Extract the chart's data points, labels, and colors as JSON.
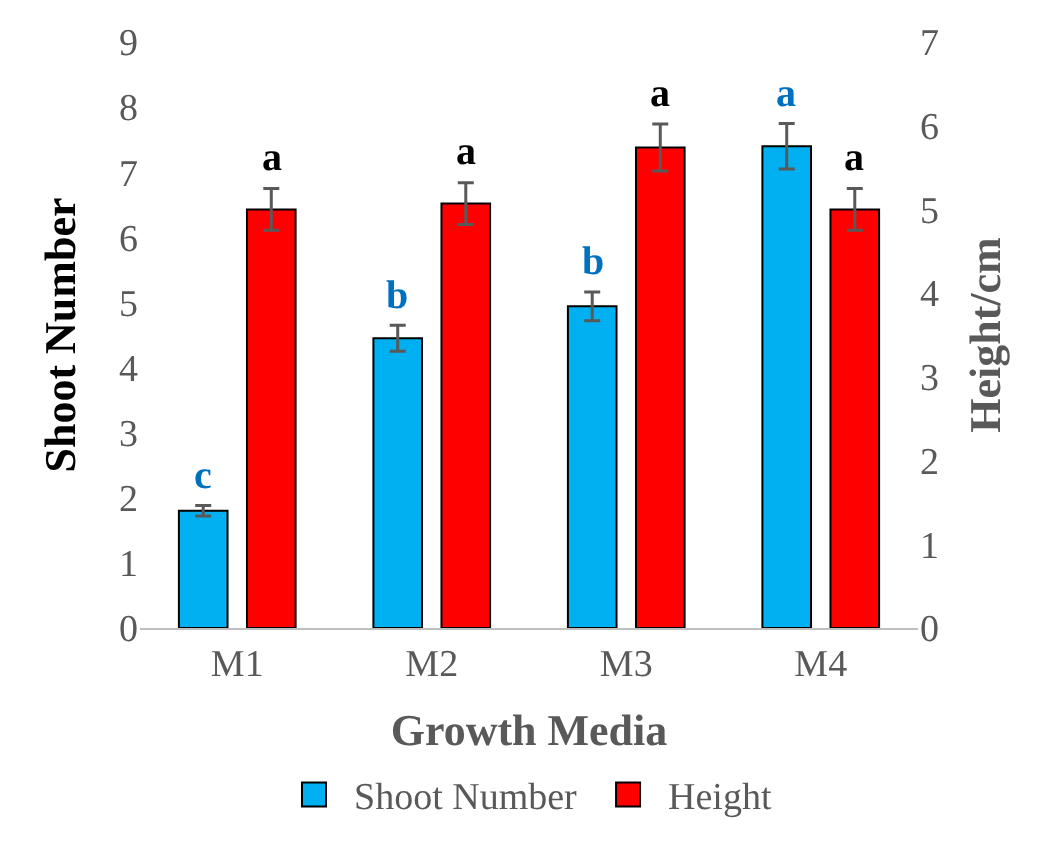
{
  "chart_data": {
    "type": "bar",
    "xlabel": "Growth Media",
    "ylabel": "Shoot Number",
    "y2label": "Height/cm",
    "categories": [
      "M1",
      "M2",
      "M3",
      "M4"
    ],
    "series": [
      {
        "name": "Shoot Number",
        "color": "#00b0f0",
        "values": [
          1.8,
          4.45,
          4.94,
          7.4
        ],
        "errors": [
          0.08,
          0.2,
          0.22,
          0.35
        ]
      },
      {
        "name": "Height",
        "color": "#ff0000",
        "values": [
          5.0,
          5.07,
          5.74,
          5.0
        ],
        "errors": [
          0.25,
          0.25,
          0.28,
          0.25
        ],
        "axis": "y2"
      }
    ],
    "ylim": [
      0,
      9
    ],
    "yticks": [
      0,
      1,
      2,
      3,
      4,
      5,
      6,
      7,
      8,
      9
    ],
    "y2lim": [
      0,
      7
    ],
    "y2ticks": [
      0,
      1,
      2,
      3,
      4,
      5,
      6,
      7
    ],
    "annotations": [
      "c",
      "b",
      "b",
      "a",
      "a",
      "a",
      "a",
      "a"
    ],
    "grid": false,
    "legend": "bottom"
  }
}
